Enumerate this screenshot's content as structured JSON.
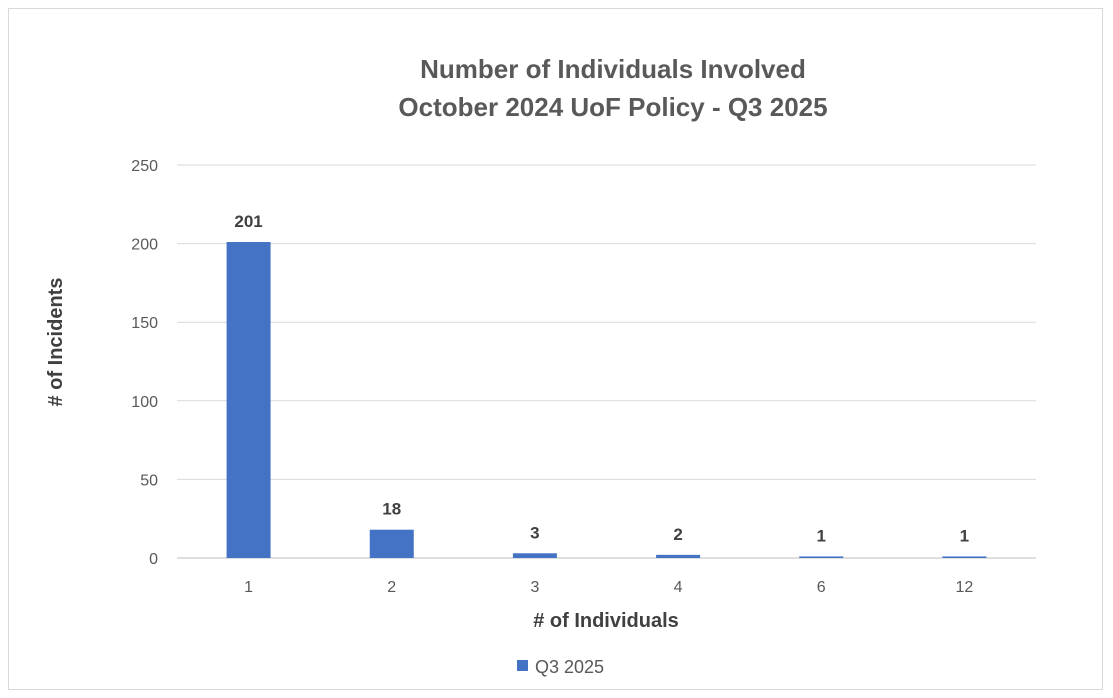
{
  "chart_data": {
    "type": "bar",
    "title_lines": [
      "Number of Individuals Involved",
      "October 2024 UoF Policy - Q3 2025"
    ],
    "xlabel": "# of Individuals",
    "ylabel": "# of Incidents",
    "categories": [
      "1",
      "2",
      "3",
      "4",
      "6",
      "12"
    ],
    "series": [
      {
        "name": "Q3 2025",
        "values": [
          201,
          18,
          3,
          2,
          1,
          1
        ]
      }
    ],
    "data_labels": [
      "201",
      "18",
      "3",
      "2",
      "1",
      "1"
    ],
    "ylim": [
      0,
      250
    ],
    "yticks": [
      "0",
      "50",
      "100",
      "150",
      "200",
      "250"
    ],
    "grid": true,
    "legend_position": "bottom",
    "colors": {
      "bar": "#4472c4"
    }
  }
}
